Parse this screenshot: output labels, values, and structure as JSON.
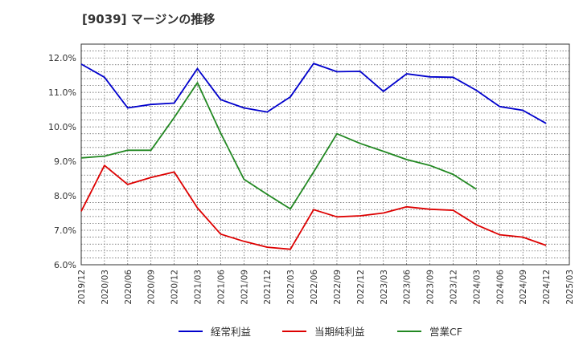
{
  "chart_data": {
    "type": "line",
    "title": "[9039]  マージンの推移",
    "xlabel": "",
    "ylabel": "",
    "ylim": [
      6.0,
      12.4
    ],
    "yticks": [
      "6.0%",
      "7.0%",
      "8.0%",
      "9.0%",
      "10.0%",
      "11.0%",
      "12.0%"
    ],
    "ytick_values": [
      6.0,
      7.0,
      8.0,
      9.0,
      10.0,
      11.0,
      12.0
    ],
    "x": [
      "2019/12",
      "2020/03",
      "2020/06",
      "2020/09",
      "2020/12",
      "2021/03",
      "2021/06",
      "2021/09",
      "2021/12",
      "2022/03",
      "2022/06",
      "2022/09",
      "2022/12",
      "2023/03",
      "2023/06",
      "2023/09",
      "2023/12",
      "2024/03",
      "2024/06",
      "2024/09",
      "2024/12",
      "2025/03"
    ],
    "grid": true,
    "legend": "bottom",
    "series": [
      {
        "name": "経常利益",
        "color": "#0000cc",
        "values": [
          11.82,
          11.44,
          10.55,
          10.65,
          10.69,
          11.69,
          10.79,
          10.55,
          10.43,
          10.87,
          11.84,
          11.6,
          11.61,
          11.03,
          11.54,
          11.45,
          11.44,
          11.06,
          10.59,
          10.48,
          10.1,
          null
        ]
      },
      {
        "name": "当期純利益",
        "color": "#dd0000",
        "values": [
          7.55,
          8.88,
          8.33,
          8.53,
          8.69,
          7.65,
          6.89,
          6.68,
          6.51,
          6.45,
          7.6,
          7.39,
          7.42,
          7.5,
          7.68,
          7.61,
          7.58,
          7.16,
          6.87,
          6.8,
          6.56,
          null
        ]
      },
      {
        "name": "営業CF",
        "color": "#228822",
        "values": [
          9.1,
          9.15,
          9.32,
          9.32,
          10.27,
          11.28,
          9.82,
          8.48,
          8.04,
          7.62,
          8.69,
          9.8,
          9.52,
          9.29,
          9.05,
          8.88,
          8.62,
          8.19,
          null,
          null,
          null,
          null
        ]
      }
    ]
  }
}
